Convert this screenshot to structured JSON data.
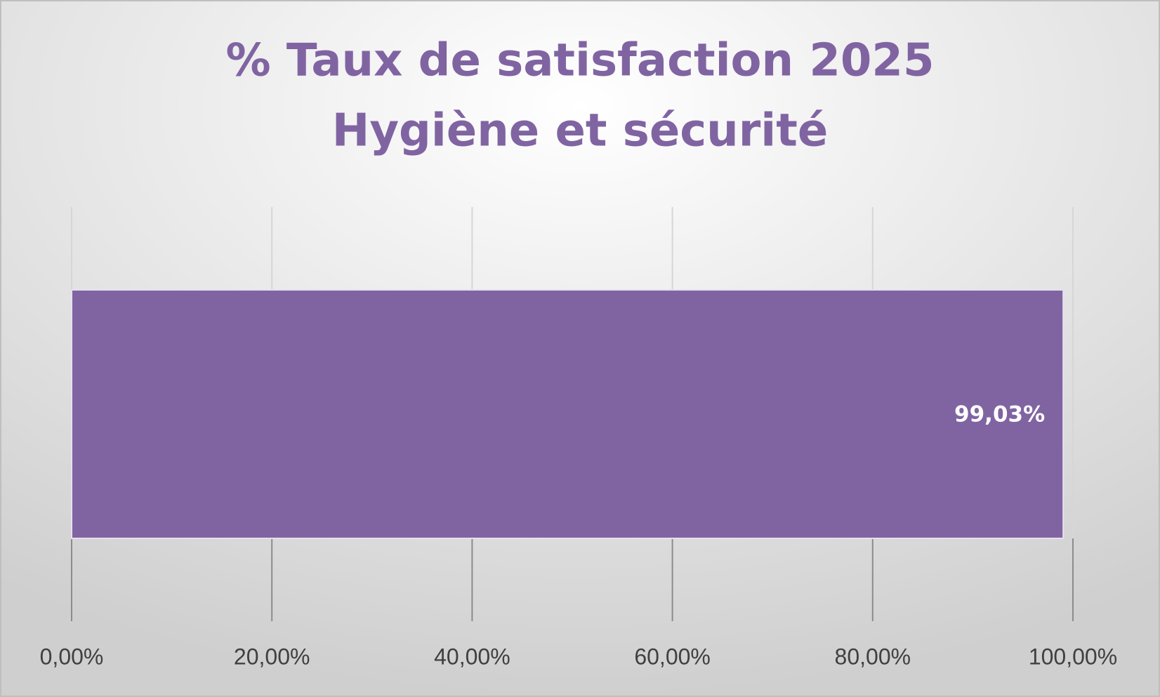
{
  "chart_data": {
    "type": "bar",
    "orientation": "horizontal",
    "title": [
      "% Taux de satisfaction 2025",
      "Hygiène et sécurité"
    ],
    "categories": [
      null
    ],
    "values": [
      99.03
    ],
    "value_labels": [
      "99,03%"
    ],
    "color": "#8064a2",
    "xlim": [
      0,
      100
    ],
    "xticks": [
      {
        "value": 0,
        "label": "0,00%"
      },
      {
        "value": 20,
        "label": "20,00%"
      },
      {
        "value": 40,
        "label": "40,00%"
      },
      {
        "value": 60,
        "label": "60,00%"
      },
      {
        "value": 80,
        "label": "80,00%"
      },
      {
        "value": 100,
        "label": "100,00%"
      }
    ],
    "grid": true
  }
}
